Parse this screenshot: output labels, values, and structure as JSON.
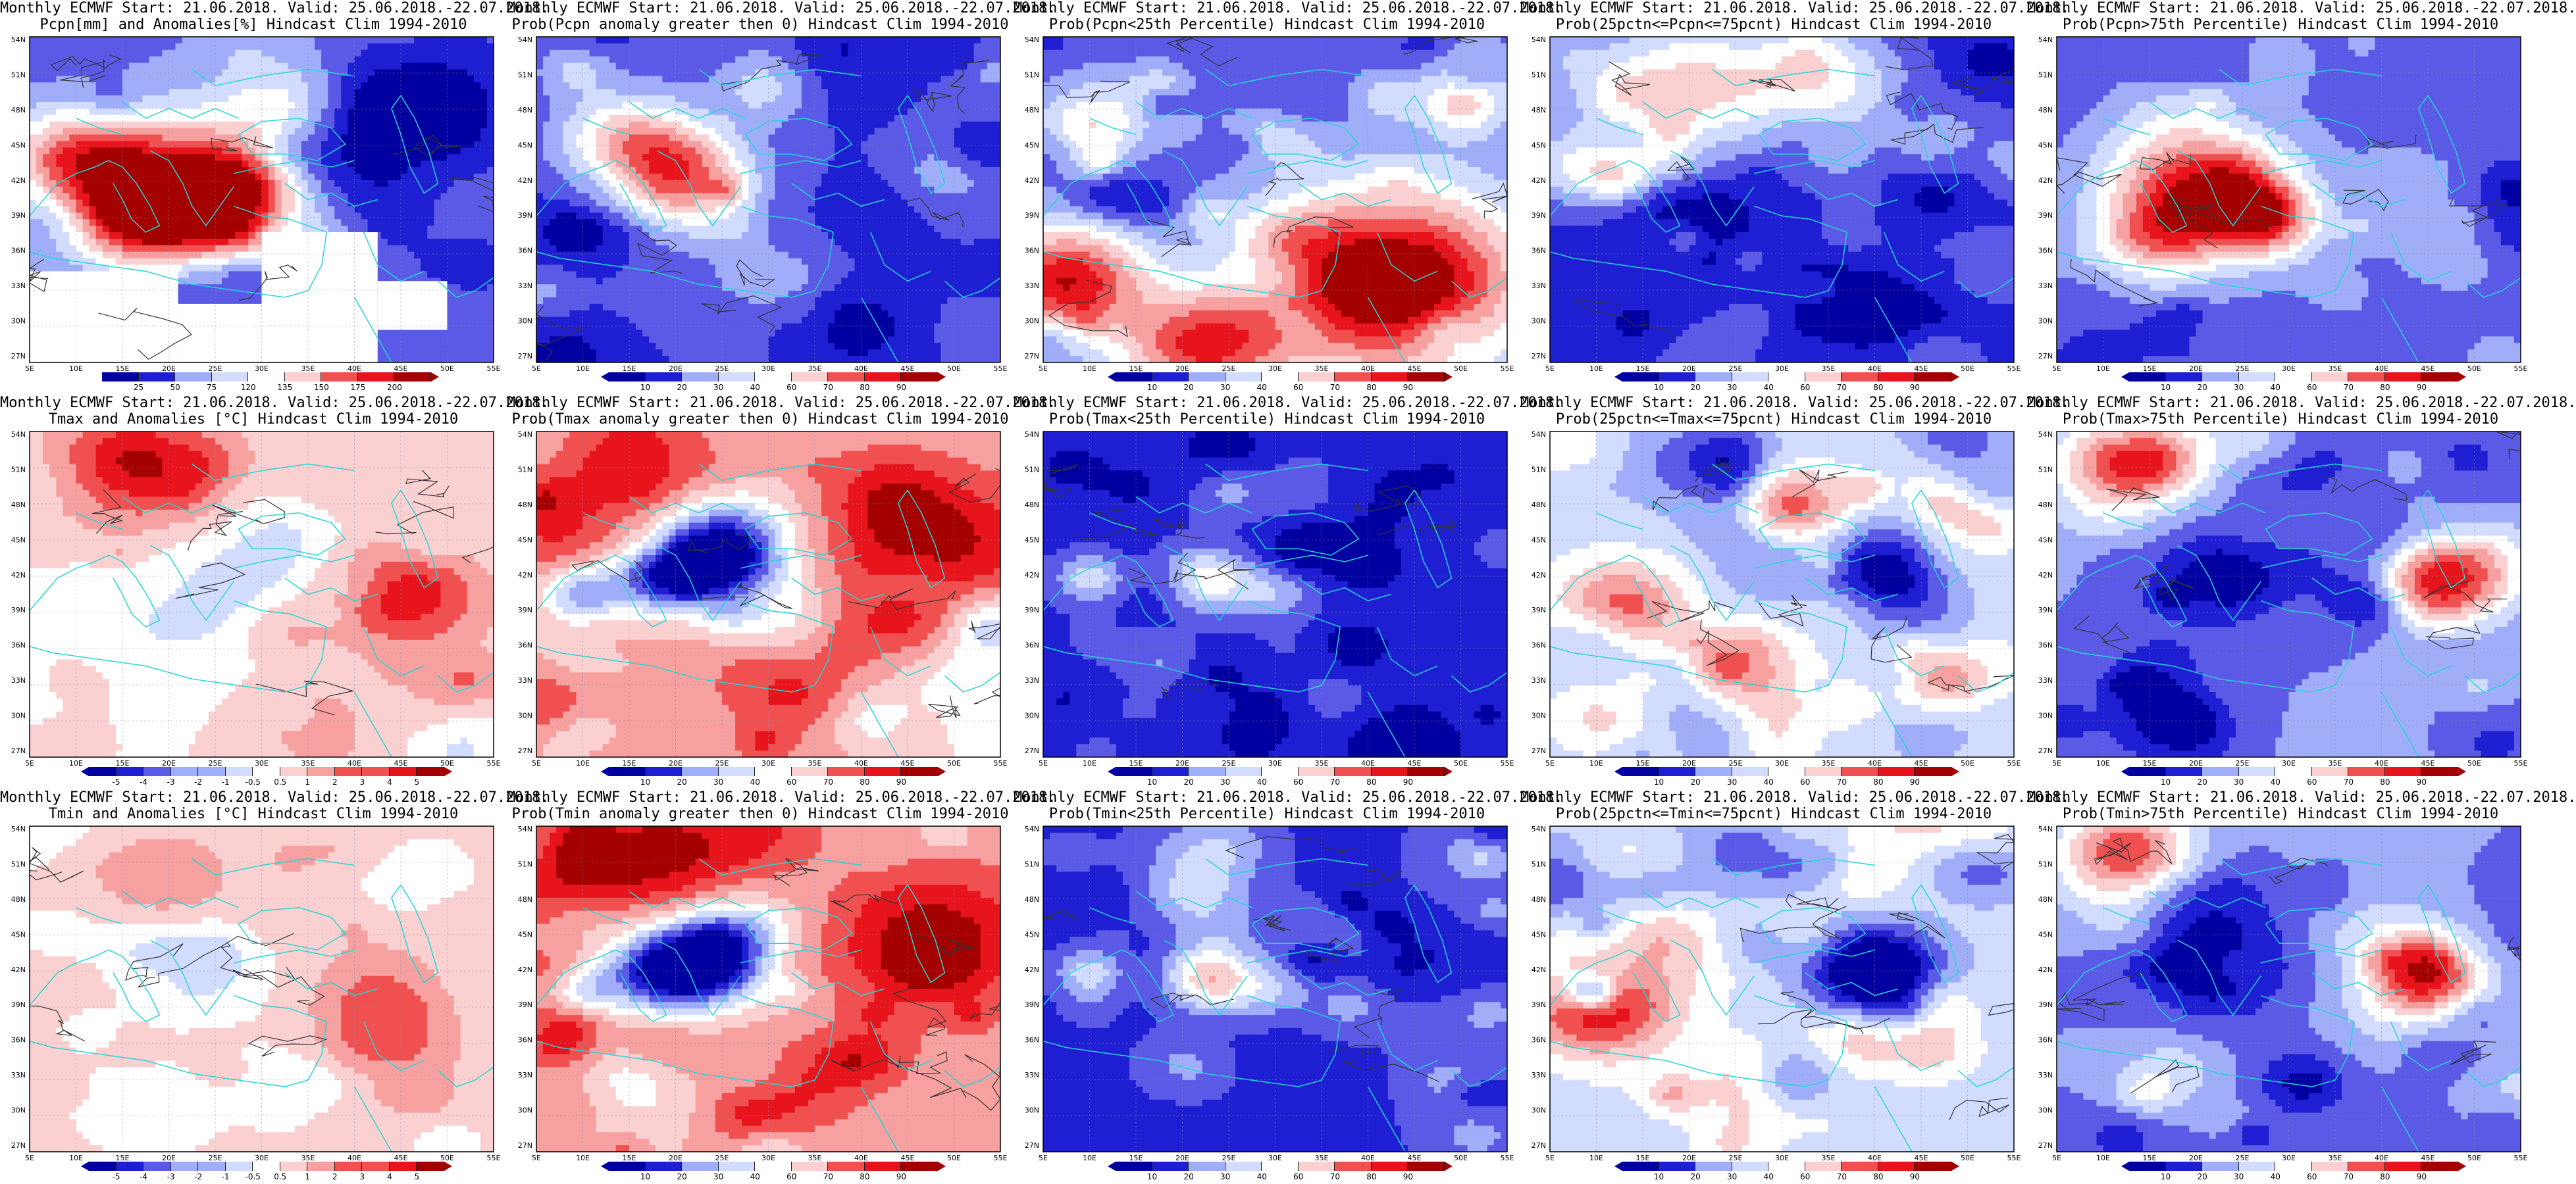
{
  "panels": [
    {
      "line1": "Monthly ECMWF Start: 21.06.2018. Valid: 25.06.2018.-22.07.2018.",
      "line2": "Pcpn[mm] and Anomalies[%] Hindcast Clim 1994-2010",
      "legend": [
        "25",
        "50",
        "75",
        "120",
        "135",
        "150",
        "175",
        "200"
      ],
      "scheme": "pcpn_anom"
    },
    {
      "line1": "Monthly ECMWF Start: 21.06.2018. Valid: 25.06.2018.-22.07.2018.",
      "line2": "Prob(Pcpn anomaly greater then 0) Hindcast Clim 1994-2010",
      "legend": [
        "10",
        "20",
        "30",
        "40",
        "60",
        "70",
        "80",
        "90"
      ],
      "scheme": "prob_pos"
    },
    {
      "line1": "Monthly ECMWF Start: 21.06.2018. Valid: 25.06.2018.-22.07.2018.",
      "line2": "Prob(Pcpn<25th Percentile) Hindcast Clim 1994-2010",
      "legend": [
        "10",
        "20",
        "30",
        "40",
        "60",
        "70",
        "80",
        "90"
      ],
      "scheme": "prob_low"
    },
    {
      "line1": "Monthly ECMWF Start: 21.06.2018. Valid: 25.06.2018.-22.07.2018.",
      "line2": "Prob(25pctn<=Pcpn<=75pcnt) Hindcast Clim 1994-2010",
      "legend": [
        "10",
        "20",
        "30",
        "40",
        "60",
        "70",
        "80",
        "90"
      ],
      "scheme": "prob_mid"
    },
    {
      "line1": "Monthly ECMWF Start: 21.06.2018. Valid: 25.06.2018.-22.07.2018.",
      "line2": "Prob(Pcpn>75th Percentile) Hindcast Clim 1994-2010",
      "legend": [
        "10",
        "20",
        "30",
        "40",
        "60",
        "70",
        "80",
        "90"
      ],
      "scheme": "prob_high"
    },
    {
      "line1": "Monthly ECMWF Start: 21.06.2018. Valid: 25.06.2018.-22.07.2018.",
      "line2": "Tmax and Anomalies [°C] Hindcast Clim 1994-2010",
      "legend": [
        "-5",
        "-4",
        "-3",
        "-2",
        "-1",
        "-0.5",
        "0.5",
        "1",
        "2",
        "3",
        "4",
        "5"
      ],
      "scheme": "t_anom"
    },
    {
      "line1": "Monthly ECMWF Start: 21.06.2018. Valid: 25.06.2018.-22.07.2018.",
      "line2": "Prob(Tmax anomaly greater then 0) Hindcast Clim 1994-2010",
      "legend": [
        "10",
        "20",
        "30",
        "40",
        "60",
        "70",
        "80",
        "90"
      ],
      "scheme": "t_prob_pos"
    },
    {
      "line1": "Monthly ECMWF Start: 21.06.2018. Valid: 25.06.2018.-22.07.2018.",
      "line2": "Prob(Tmax<25th Percentile) Hindcast Clim 1994-2010",
      "legend": [
        "10",
        "20",
        "30",
        "40",
        "60",
        "70",
        "80",
        "90"
      ],
      "scheme": "t_prob_low"
    },
    {
      "line1": "Monthly ECMWF Start: 21.06.2018. Valid: 25.06.2018.-22.07.2018.",
      "line2": "Prob(25pctn<=Tmax<=75pcnt) Hindcast Clim 1994-2010",
      "legend": [
        "10",
        "20",
        "30",
        "40",
        "60",
        "70",
        "80",
        "90"
      ],
      "scheme": "t_prob_mid"
    },
    {
      "line1": "Monthly ECMWF Start: 21.06.2018. Valid: 25.06.2018.-22.07.2018.",
      "line2": "Prob(Tmax>75th Percentile) Hindcast Clim 1994-2010",
      "legend": [
        "10",
        "20",
        "30",
        "40",
        "60",
        "70",
        "80",
        "90"
      ],
      "scheme": "t_prob_high"
    },
    {
      "line1": "Monthly ECMWF Start: 21.06.2018. Valid: 25.06.2018.-22.07.2018.",
      "line2": "Tmin and Anomalies [°C] Hindcast Clim 1994-2010",
      "legend": [
        "-5",
        "-4",
        "-3",
        "-2",
        "-1",
        "-0.5",
        "0.5",
        "1",
        "2",
        "3",
        "4",
        "5"
      ],
      "scheme": "tmin_anom"
    },
    {
      "line1": "Monthly ECMWF Start: 21.06.2018. Valid: 25.06.2018.-22.07.2018.",
      "line2": "Prob(Tmin anomaly greater then 0) Hindcast Clim 1994-2010",
      "legend": [
        "10",
        "20",
        "30",
        "40",
        "60",
        "70",
        "80",
        "90"
      ],
      "scheme": "t_prob_pos"
    },
    {
      "line1": "Monthly ECMWF Start: 21.06.2018. Valid: 25.06.2018.-22.07.2018.",
      "line2": "Prob(Tmin<25th Percentile) Hindcast Clim 1994-2010",
      "legend": [
        "10",
        "20",
        "30",
        "40",
        "60",
        "70",
        "80",
        "90"
      ],
      "scheme": "t_prob_low"
    },
    {
      "line1": "Monthly ECMWF Start: 21.06.2018. Valid: 25.06.2018.-22.07.2018.",
      "line2": "Prob(25pctn<=Tmin<=75pcnt) Hindcast Clim 1994-2010",
      "legend": [
        "10",
        "20",
        "30",
        "40",
        "60",
        "70",
        "80",
        "90"
      ],
      "scheme": "t_prob_mid"
    },
    {
      "line1": "Monthly ECMWF Start: 21.06.2018. Valid: 25.06.2018.-22.07.2018.",
      "line2": "Prob(Tmin>75th Percentile) Hindcast Clim 1994-2010",
      "legend": [
        "10",
        "20",
        "30",
        "40",
        "60",
        "70",
        "80",
        "90"
      ],
      "scheme": "t_prob_high"
    }
  ],
  "lat_labels": [
    "54N",
    "51N",
    "48N",
    "45N",
    "42N",
    "39N",
    "36N",
    "33N",
    "30N",
    "27N"
  ],
  "lon_labels": [
    "5E",
    "10E",
    "15E",
    "20E",
    "25E",
    "30E",
    "35E",
    "40E",
    "45E",
    "50E",
    "55E"
  ],
  "colors": {
    "dark_red": "#a50000",
    "red": "#e8141c",
    "mid_red": "#f05050",
    "light_red": "#f7a0a0",
    "pale_red": "#fbd0d0",
    "white": "#ffffff",
    "pale_blue": "#d2dcff",
    "light_blue": "#a0aefa",
    "mid_blue": "#5a5ae6",
    "blue": "#1e1ed2",
    "dark_blue": "#0000a0",
    "coast": "#25d6d6",
    "contour": "#333333"
  }
}
